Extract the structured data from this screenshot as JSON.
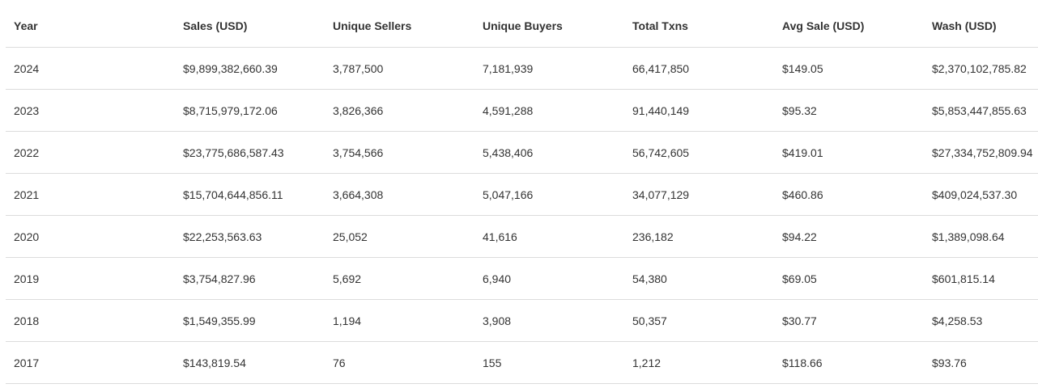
{
  "table": {
    "columns": [
      "Year",
      "Sales (USD)",
      "Unique Sellers",
      "Unique Buyers",
      "Total Txns",
      "Avg Sale (USD)",
      "Wash (USD)"
    ],
    "rows": [
      [
        "2024",
        "$9,899,382,660.39",
        "3,787,500",
        "7,181,939",
        "66,417,850",
        "$149.05",
        "$2,370,102,785.82"
      ],
      [
        "2023",
        "$8,715,979,172.06",
        "3,826,366",
        "4,591,288",
        "91,440,149",
        "$95.32",
        "$5,853,447,855.63"
      ],
      [
        "2022",
        "$23,775,686,587.43",
        "3,754,566",
        "5,438,406",
        "56,742,605",
        "$419.01",
        "$27,334,752,809.94"
      ],
      [
        "2021",
        "$15,704,644,856.11",
        "3,664,308",
        "5,047,166",
        "34,077,129",
        "$460.86",
        "$409,024,537.30"
      ],
      [
        "2020",
        "$22,253,563.63",
        "25,052",
        "41,616",
        "236,182",
        "$94.22",
        "$1,389,098.64"
      ],
      [
        "2019",
        "$3,754,827.96",
        "5,692",
        "6,940",
        "54,380",
        "$69.05",
        "$601,815.14"
      ],
      [
        "2018",
        "$1,549,355.99",
        "1,194",
        "3,908",
        "50,357",
        "$30.77",
        "$4,258.53"
      ],
      [
        "2017",
        "$143,819.54",
        "76",
        "155",
        "1,212",
        "$118.66",
        "$93.76"
      ]
    ]
  }
}
